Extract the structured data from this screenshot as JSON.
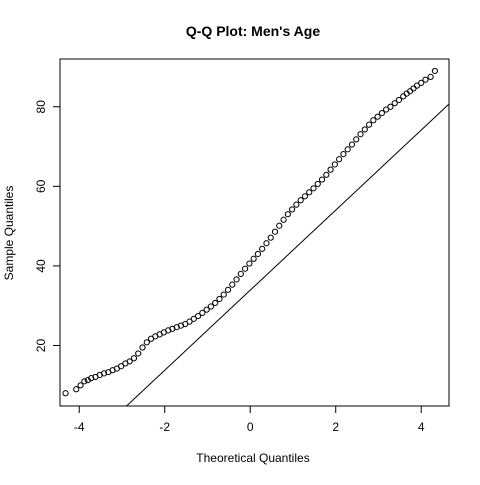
{
  "chart_data": {
    "type": "scatter",
    "title": "Q-Q Plot: Men's Age",
    "xlabel": "Theoretical Quantiles",
    "ylabel": "Sample Quantiles",
    "xlim": [
      -4.45,
      4.65
    ],
    "ylim": [
      4.8,
      92.0
    ],
    "x_ticks": [
      -4,
      -2,
      0,
      2,
      4
    ],
    "x_tick_labels": [
      "-4",
      "-2",
      "0",
      "2",
      "4"
    ],
    "y_ticks": [
      20,
      40,
      60,
      80
    ],
    "y_tick_labels": [
      "20",
      "40",
      "60",
      "80"
    ],
    "grid": false,
    "legend": "none",
    "point_color": "#000000",
    "reference_line": {
      "slope": 10.06,
      "intercept": 33.9
    },
    "series": [
      {
        "points": {
          "x": [
            -4.32,
            -4.07,
            -3.97,
            -3.88,
            -3.8,
            -3.72,
            -3.62,
            -3.52,
            -3.42,
            -3.32,
            -3.22,
            -3.12,
            -3.02,
            -2.92,
            -2.82,
            -2.72,
            -2.62,
            -2.52,
            -2.42,
            -2.32,
            -2.22,
            -2.12,
            -2.02,
            -1.92,
            -1.82,
            -1.72,
            -1.62,
            -1.52,
            -1.42,
            -1.32,
            -1.22,
            -1.12,
            -1.02,
            -0.92,
            -0.82,
            -0.72,
            -0.62,
            -0.52,
            -0.42,
            -0.32,
            -0.22,
            -0.12,
            -0.02,
            0.08,
            0.18,
            0.28,
            0.38,
            0.48,
            0.58,
            0.68,
            0.78,
            0.88,
            0.98,
            1.08,
            1.18,
            1.28,
            1.38,
            1.48,
            1.58,
            1.68,
            1.78,
            1.88,
            1.98,
            2.08,
            2.18,
            2.28,
            2.38,
            2.48,
            2.58,
            2.68,
            2.78,
            2.88,
            2.98,
            3.08,
            3.18,
            3.28,
            3.38,
            3.48,
            3.58,
            3.66,
            3.74,
            3.82,
            3.9,
            4.0,
            4.1,
            4.22,
            4.32
          ],
          "y": [
            8.0,
            9.0,
            10.0,
            11.0,
            11.3,
            11.8,
            12.1,
            12.6,
            13.0,
            13.3,
            13.8,
            14.2,
            14.8,
            15.5,
            16.0,
            16.8,
            18.0,
            19.5,
            20.8,
            21.7,
            22.3,
            22.8,
            23.3,
            23.8,
            24.2,
            24.6,
            25.0,
            25.4,
            26.0,
            26.7,
            27.4,
            28.2,
            29.0,
            29.8,
            30.7,
            31.7,
            32.8,
            34.0,
            35.3,
            36.6,
            38.0,
            39.3,
            40.6,
            41.8,
            43.0,
            44.3,
            45.7,
            47.1,
            48.6,
            50.1,
            51.6,
            53.0,
            54.2,
            55.4,
            56.5,
            57.5,
            58.5,
            59.5,
            60.6,
            61.7,
            62.9,
            64.2,
            65.5,
            66.8,
            68.1,
            69.3,
            70.5,
            71.8,
            73.1,
            74.3,
            75.5,
            76.6,
            77.5,
            78.4,
            79.3,
            80.0,
            80.9,
            81.7,
            82.6,
            83.3,
            83.9,
            84.6,
            85.3,
            86.0,
            86.8,
            87.5,
            89.0
          ]
        }
      }
    ]
  }
}
